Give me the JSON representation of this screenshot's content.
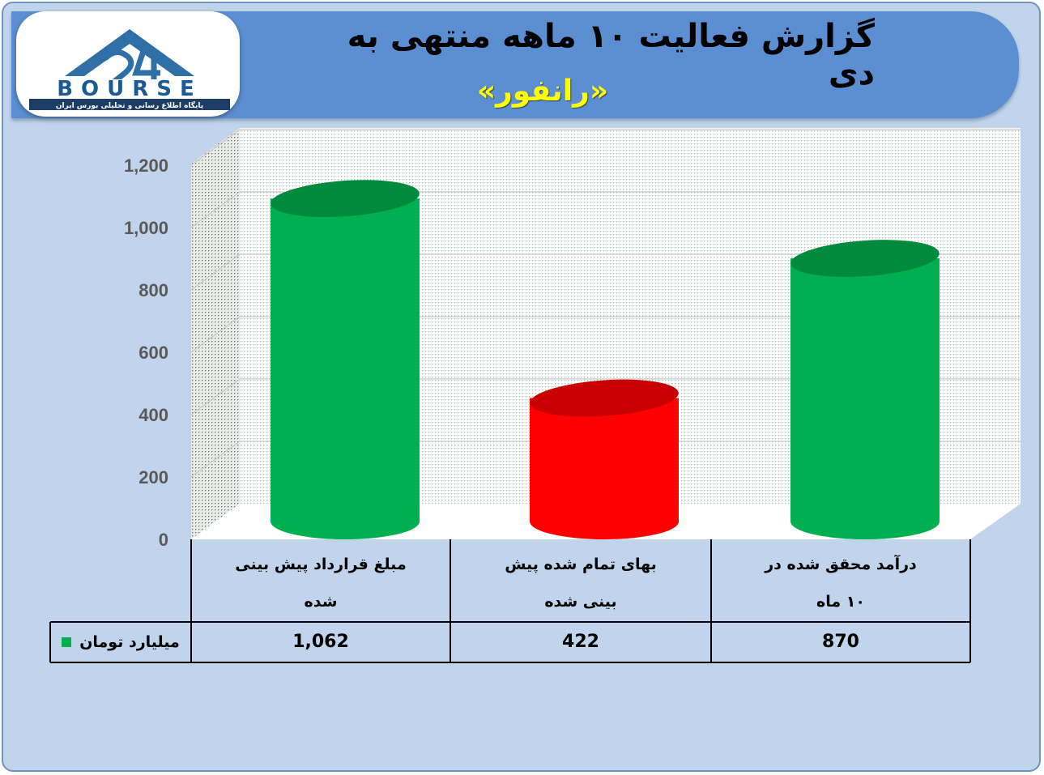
{
  "header": {
    "title": "گزارش فعالیت ۱۰ ماهه منتهی به دی",
    "subtitle": "«رانفور»",
    "logo_text": "BOURSE",
    "logo_tagline": "پایگاه اطلاع رسانی و تحلیلی بورس ایران",
    "banner_color": "#5b8fd1",
    "subtitle_color": "#ffff00"
  },
  "chart_data": {
    "type": "bar",
    "style": "3d-cylinder",
    "categories": [
      "مبلغ قرارداد پیش بینی شده",
      "بهای تمام شده پیش بینی شده",
      "درآمد محقق شده در ۱۰ ماه"
    ],
    "category_lines": [
      [
        "مبلغ قرارداد پیش بینی",
        "شده"
      ],
      [
        "بهای تمام شده پیش",
        "بینی شده"
      ],
      [
        "درآمد محقق شده در",
        "۱۰ ماه"
      ]
    ],
    "series": [
      {
        "name": "میلیارد تومان",
        "values": [
          1062,
          422,
          870
        ],
        "value_labels": [
          "1,062",
          "422",
          "870"
        ]
      }
    ],
    "bar_colors": [
      "#00b050",
      "#ff0000",
      "#00b050"
    ],
    "yticks": [
      "0",
      "200",
      "400",
      "600",
      "800",
      "1,000",
      "1,200"
    ],
    "ylim": [
      0,
      1200
    ],
    "grid": true,
    "legend": "data-table"
  }
}
